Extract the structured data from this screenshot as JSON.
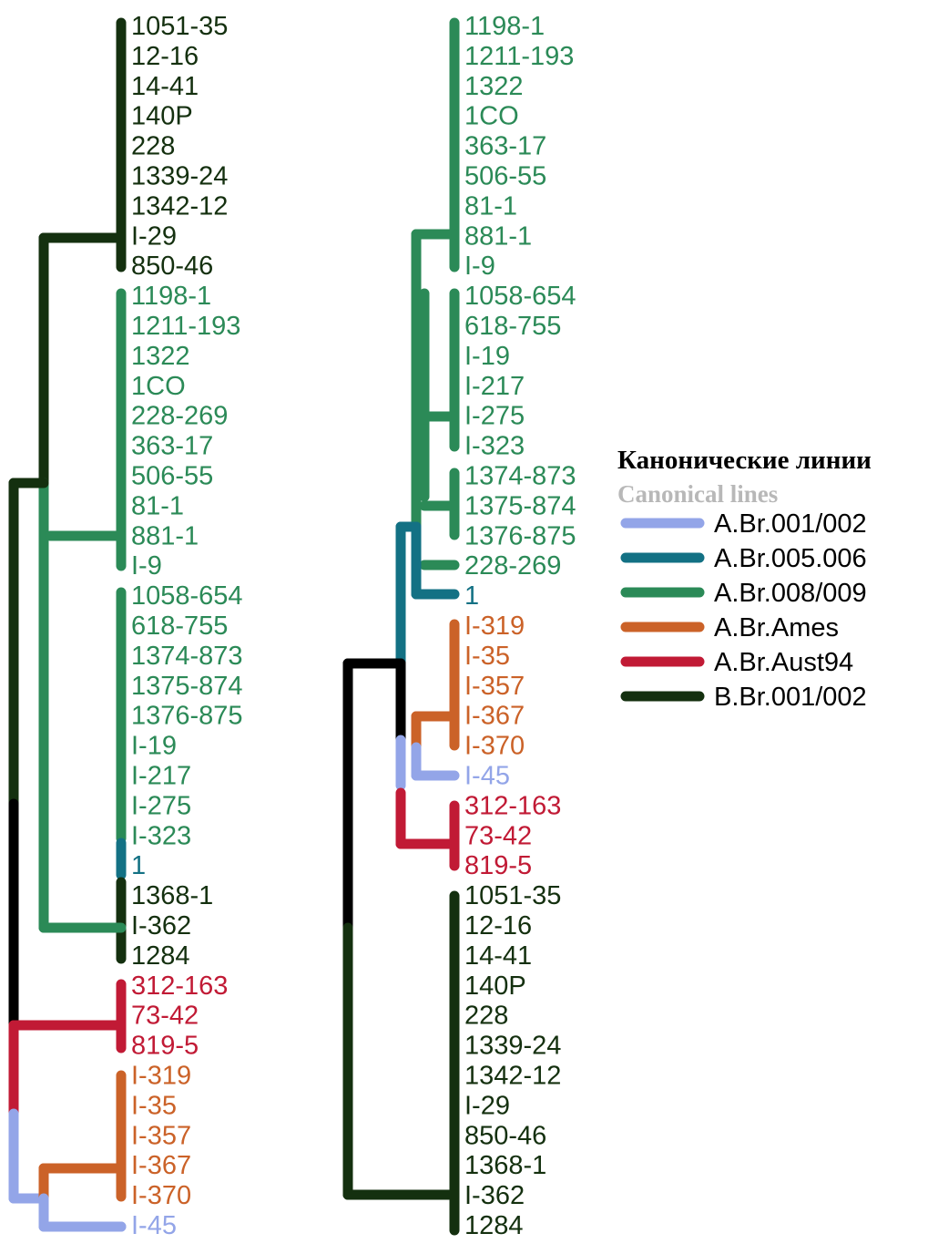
{
  "colors": {
    "A.Br.001/002": "#93a5e8",
    "A.Br.005.006": "#137184",
    "A.Br.008/009": "#2b8a57",
    "A.Br.Ames": "#cb6228",
    "A.Br.Aust94": "#c11a35",
    "B.Br.001/002": "#14300f",
    "root": "#000000"
  },
  "legend": {
    "title": "Канонические линии",
    "subtitle": "Canonical lines",
    "items": [
      {
        "label": "A.Br.001/002",
        "color": "#93a5e8"
      },
      {
        "label": "A.Br.005.006",
        "color": "#137184"
      },
      {
        "label": "A.Br.008/009",
        "color": "#2b8a57"
      },
      {
        "label": "A.Br.Ames",
        "color": "#cb6228"
      },
      {
        "label": "A.Br.Aust94",
        "color": "#c11a35"
      },
      {
        "label": "B.Br.001/002",
        "color": "#14300f"
      }
    ]
  },
  "trees": [
    {
      "leaves": [
        {
          "label": "1051-35",
          "lineage": "B.Br.001/002"
        },
        {
          "label": "12-16",
          "lineage": "B.Br.001/002"
        },
        {
          "label": "14-41",
          "lineage": "B.Br.001/002"
        },
        {
          "label": "140P",
          "lineage": "B.Br.001/002"
        },
        {
          "label": "228",
          "lineage": "B.Br.001/002"
        },
        {
          "label": "1339-24",
          "lineage": "B.Br.001/002"
        },
        {
          "label": "1342-12",
          "lineage": "B.Br.001/002"
        },
        {
          "label": "I-29",
          "lineage": "B.Br.001/002"
        },
        {
          "label": "850-46",
          "lineage": "B.Br.001/002"
        },
        {
          "label": "1198-1",
          "lineage": "A.Br.008/009"
        },
        {
          "label": "1211-193",
          "lineage": "A.Br.008/009"
        },
        {
          "label": "1322",
          "lineage": "A.Br.008/009"
        },
        {
          "label": "1CO",
          "lineage": "A.Br.008/009"
        },
        {
          "label": "228-269",
          "lineage": "A.Br.008/009"
        },
        {
          "label": "363-17",
          "lineage": "A.Br.008/009"
        },
        {
          "label": "506-55",
          "lineage": "A.Br.008/009"
        },
        {
          "label": "81-1",
          "lineage": "A.Br.008/009"
        },
        {
          "label": "881-1",
          "lineage": "A.Br.008/009"
        },
        {
          "label": "I-9",
          "lineage": "A.Br.008/009"
        },
        {
          "label": "1058-654",
          "lineage": "A.Br.008/009"
        },
        {
          "label": "618-755",
          "lineage": "A.Br.008/009"
        },
        {
          "label": "1374-873",
          "lineage": "A.Br.008/009"
        },
        {
          "label": "1375-874",
          "lineage": "A.Br.008/009"
        },
        {
          "label": "1376-875",
          "lineage": "A.Br.008/009"
        },
        {
          "label": "I-19",
          "lineage": "A.Br.008/009"
        },
        {
          "label": "I-217",
          "lineage": "A.Br.008/009"
        },
        {
          "label": "I-275",
          "lineage": "A.Br.008/009"
        },
        {
          "label": "I-323",
          "lineage": "A.Br.008/009"
        },
        {
          "label": "1",
          "lineage": "A.Br.005.006"
        },
        {
          "label": "1368-1",
          "lineage": "B.Br.001/002"
        },
        {
          "label": "I-362",
          "lineage": "B.Br.001/002"
        },
        {
          "label": "1284",
          "lineage": "B.Br.001/002"
        },
        {
          "label": "312-163",
          "lineage": "A.Br.Aust94"
        },
        {
          "label": "73-42",
          "lineage": "A.Br.Aust94"
        },
        {
          "label": "819-5",
          "lineage": "A.Br.Aust94"
        },
        {
          "label": "I-319",
          "lineage": "A.Br.Ames"
        },
        {
          "label": "I-35",
          "lineage": "A.Br.Ames"
        },
        {
          "label": "I-357",
          "lineage": "A.Br.Ames"
        },
        {
          "label": "I-367",
          "lineage": "A.Br.Ames"
        },
        {
          "label": "I-370",
          "lineage": "A.Br.Ames"
        },
        {
          "label": "I-45",
          "lineage": "A.Br.001/002"
        }
      ]
    },
    {
      "leaves": [
        {
          "label": "1198-1",
          "lineage": "A.Br.008/009"
        },
        {
          "label": "1211-193",
          "lineage": "A.Br.008/009"
        },
        {
          "label": "1322",
          "lineage": "A.Br.008/009"
        },
        {
          "label": "1CO",
          "lineage": "A.Br.008/009"
        },
        {
          "label": "363-17",
          "lineage": "A.Br.008/009"
        },
        {
          "label": "506-55",
          "lineage": "A.Br.008/009"
        },
        {
          "label": "81-1",
          "lineage": "A.Br.008/009"
        },
        {
          "label": "881-1",
          "lineage": "A.Br.008/009"
        },
        {
          "label": "I-9",
          "lineage": "A.Br.008/009"
        },
        {
          "label": "1058-654",
          "lineage": "A.Br.008/009"
        },
        {
          "label": "618-755",
          "lineage": "A.Br.008/009"
        },
        {
          "label": "I-19",
          "lineage": "A.Br.008/009"
        },
        {
          "label": "I-217",
          "lineage": "A.Br.008/009"
        },
        {
          "label": "I-275",
          "lineage": "A.Br.008/009"
        },
        {
          "label": "I-323",
          "lineage": "A.Br.008/009"
        },
        {
          "label": "1374-873",
          "lineage": "A.Br.008/009"
        },
        {
          "label": "1375-874",
          "lineage": "A.Br.008/009"
        },
        {
          "label": "1376-875",
          "lineage": "A.Br.008/009"
        },
        {
          "label": "228-269",
          "lineage": "A.Br.008/009"
        },
        {
          "label": "1",
          "lineage": "A.Br.005.006"
        },
        {
          "label": "I-319",
          "lineage": "A.Br.Ames"
        },
        {
          "label": "I-35",
          "lineage": "A.Br.Ames"
        },
        {
          "label": "I-357",
          "lineage": "A.Br.Ames"
        },
        {
          "label": "I-367",
          "lineage": "A.Br.Ames"
        },
        {
          "label": "I-370",
          "lineage": "A.Br.Ames"
        },
        {
          "label": "I-45",
          "lineage": "A.Br.001/002"
        },
        {
          "label": "312-163",
          "lineage": "A.Br.Aust94"
        },
        {
          "label": "73-42",
          "lineage": "A.Br.Aust94"
        },
        {
          "label": "819-5",
          "lineage": "A.Br.Aust94"
        },
        {
          "label": "1051-35",
          "lineage": "B.Br.001/002"
        },
        {
          "label": "12-16",
          "lineage": "B.Br.001/002"
        },
        {
          "label": "14-41",
          "lineage": "B.Br.001/002"
        },
        {
          "label": "140P",
          "lineage": "B.Br.001/002"
        },
        {
          "label": "228",
          "lineage": "B.Br.001/002"
        },
        {
          "label": "1339-24",
          "lineage": "B.Br.001/002"
        },
        {
          "label": "1342-12",
          "lineage": "B.Br.001/002"
        },
        {
          "label": "I-29",
          "lineage": "B.Br.001/002"
        },
        {
          "label": "850-46",
          "lineage": "B.Br.001/002"
        },
        {
          "label": "1368-1",
          "lineage": "B.Br.001/002"
        },
        {
          "label": "I-362",
          "lineage": "B.Br.001/002"
        },
        {
          "label": "1284",
          "lineage": "B.Br.001/002"
        }
      ]
    }
  ]
}
